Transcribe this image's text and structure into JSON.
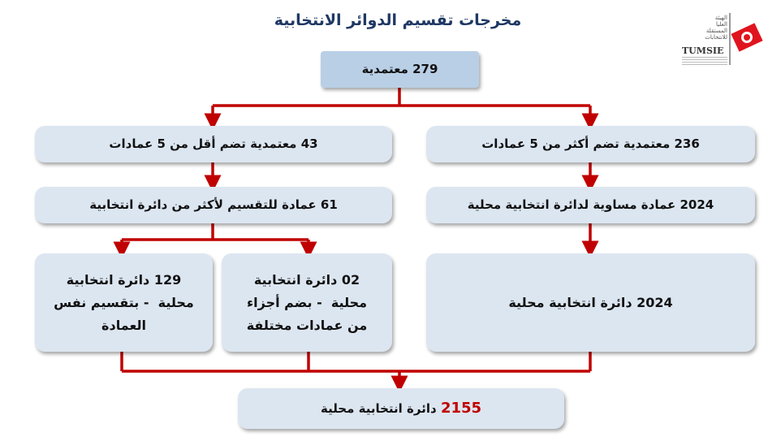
{
  "title": "مخرجات تقسيم الدوائر الانتخابية",
  "logo": {
    "arabic": "الهيئة العليا المستقلة للانتخابات",
    "english": "TUMSIE"
  },
  "colors": {
    "connector": "#c00000",
    "box": "#dce6f1",
    "top_box": "#b9cfe6",
    "highlight": "#c00000"
  },
  "nodes": {
    "root": "279 معتمدية",
    "less_than_5": "43 معتمدية تضم أقل من 5 عمادات",
    "more_than_5": "236 معتمدية تضم أكثر من 5 عمادات",
    "split_imadas": "61 عمادة للتقسيم لأكثر من دائرة انتخابية",
    "equal_imadas": "2024 عمادة مساوية لدائرة انتخابية محلية",
    "split_same": {
      "line1": "129 دائرة انتخابية",
      "line2": "محلية  - بتقسيم نفس",
      "line3": "العمادة"
    },
    "merge_parts": {
      "line1": "02 دائرة انتخابية",
      "line2": "محلية  - بضم أجزاء",
      "line3": "من عمادات مختلفة"
    },
    "local_2024": "2024 دائرة انتخابية محلية",
    "total": {
      "number": "2155",
      "label": "دائرة انتخابية محلية"
    }
  }
}
